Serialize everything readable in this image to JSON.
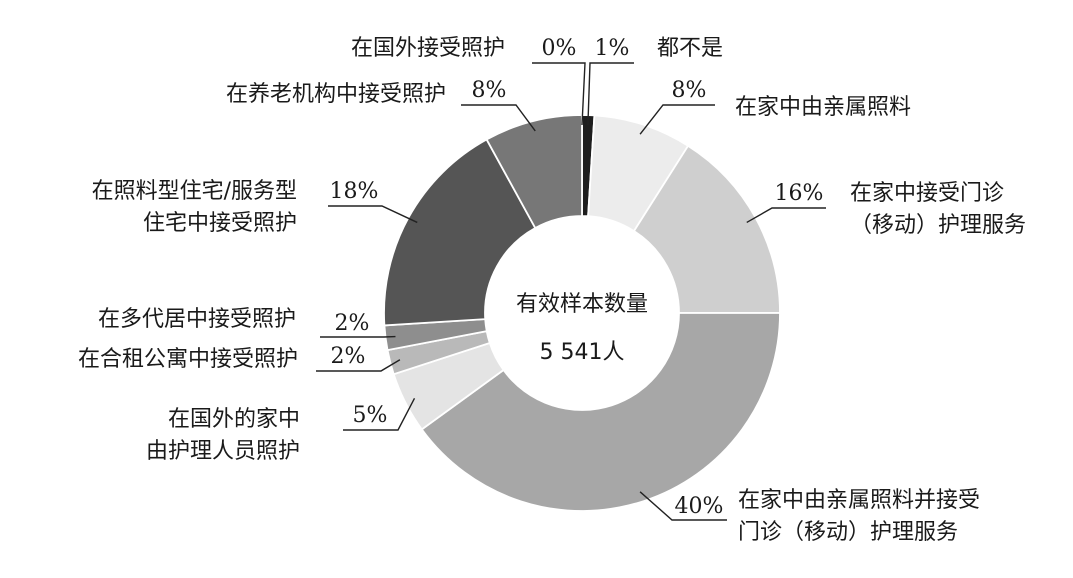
{
  "chart_data": {
    "type": "pie",
    "donut": true,
    "center_text": [
      "有效样本数量",
      "5 541人"
    ],
    "slices": [
      {
        "label": [
          "都不是"
        ],
        "value": 1,
        "display": "1%",
        "color": "#1e1e1e"
      },
      {
        "label": [
          "在家中由亲属照料"
        ],
        "value": 8,
        "display": "8%",
        "color": "#ececec"
      },
      {
        "label": [
          "在家中接受门诊",
          "（移动）护理服务"
        ],
        "value": 16,
        "display": "16%",
        "color": "#cfcfcf"
      },
      {
        "label": [
          "在家中由亲属照料并接受",
          "门诊（移动）护理服务"
        ],
        "value": 40,
        "display": "40%",
        "color": "#a7a7a7"
      },
      {
        "label": [
          "在国外的家中",
          "由护理人员照护"
        ],
        "value": 5,
        "display": "5%",
        "color": "#e4e4e4"
      },
      {
        "label": [
          "在合租公寓中接受照护"
        ],
        "value": 2,
        "display": "2%",
        "color": "#b9b9b9"
      },
      {
        "label": [
          "在多代居中接受照护"
        ],
        "value": 2,
        "display": "2%",
        "color": "#8e8e8e"
      },
      {
        "label": [
          "在照料型住宅/服务型",
          "住宅中接受照护"
        ],
        "value": 18,
        "display": "18%",
        "color": "#555555"
      },
      {
        "label": [
          "在养老机构中接受照护"
        ],
        "value": 8,
        "display": "8%",
        "color": "#777777"
      },
      {
        "label": [
          "在国外接受照护"
        ],
        "value": 0,
        "display": "0%",
        "color": "#f4f4f4"
      }
    ]
  }
}
